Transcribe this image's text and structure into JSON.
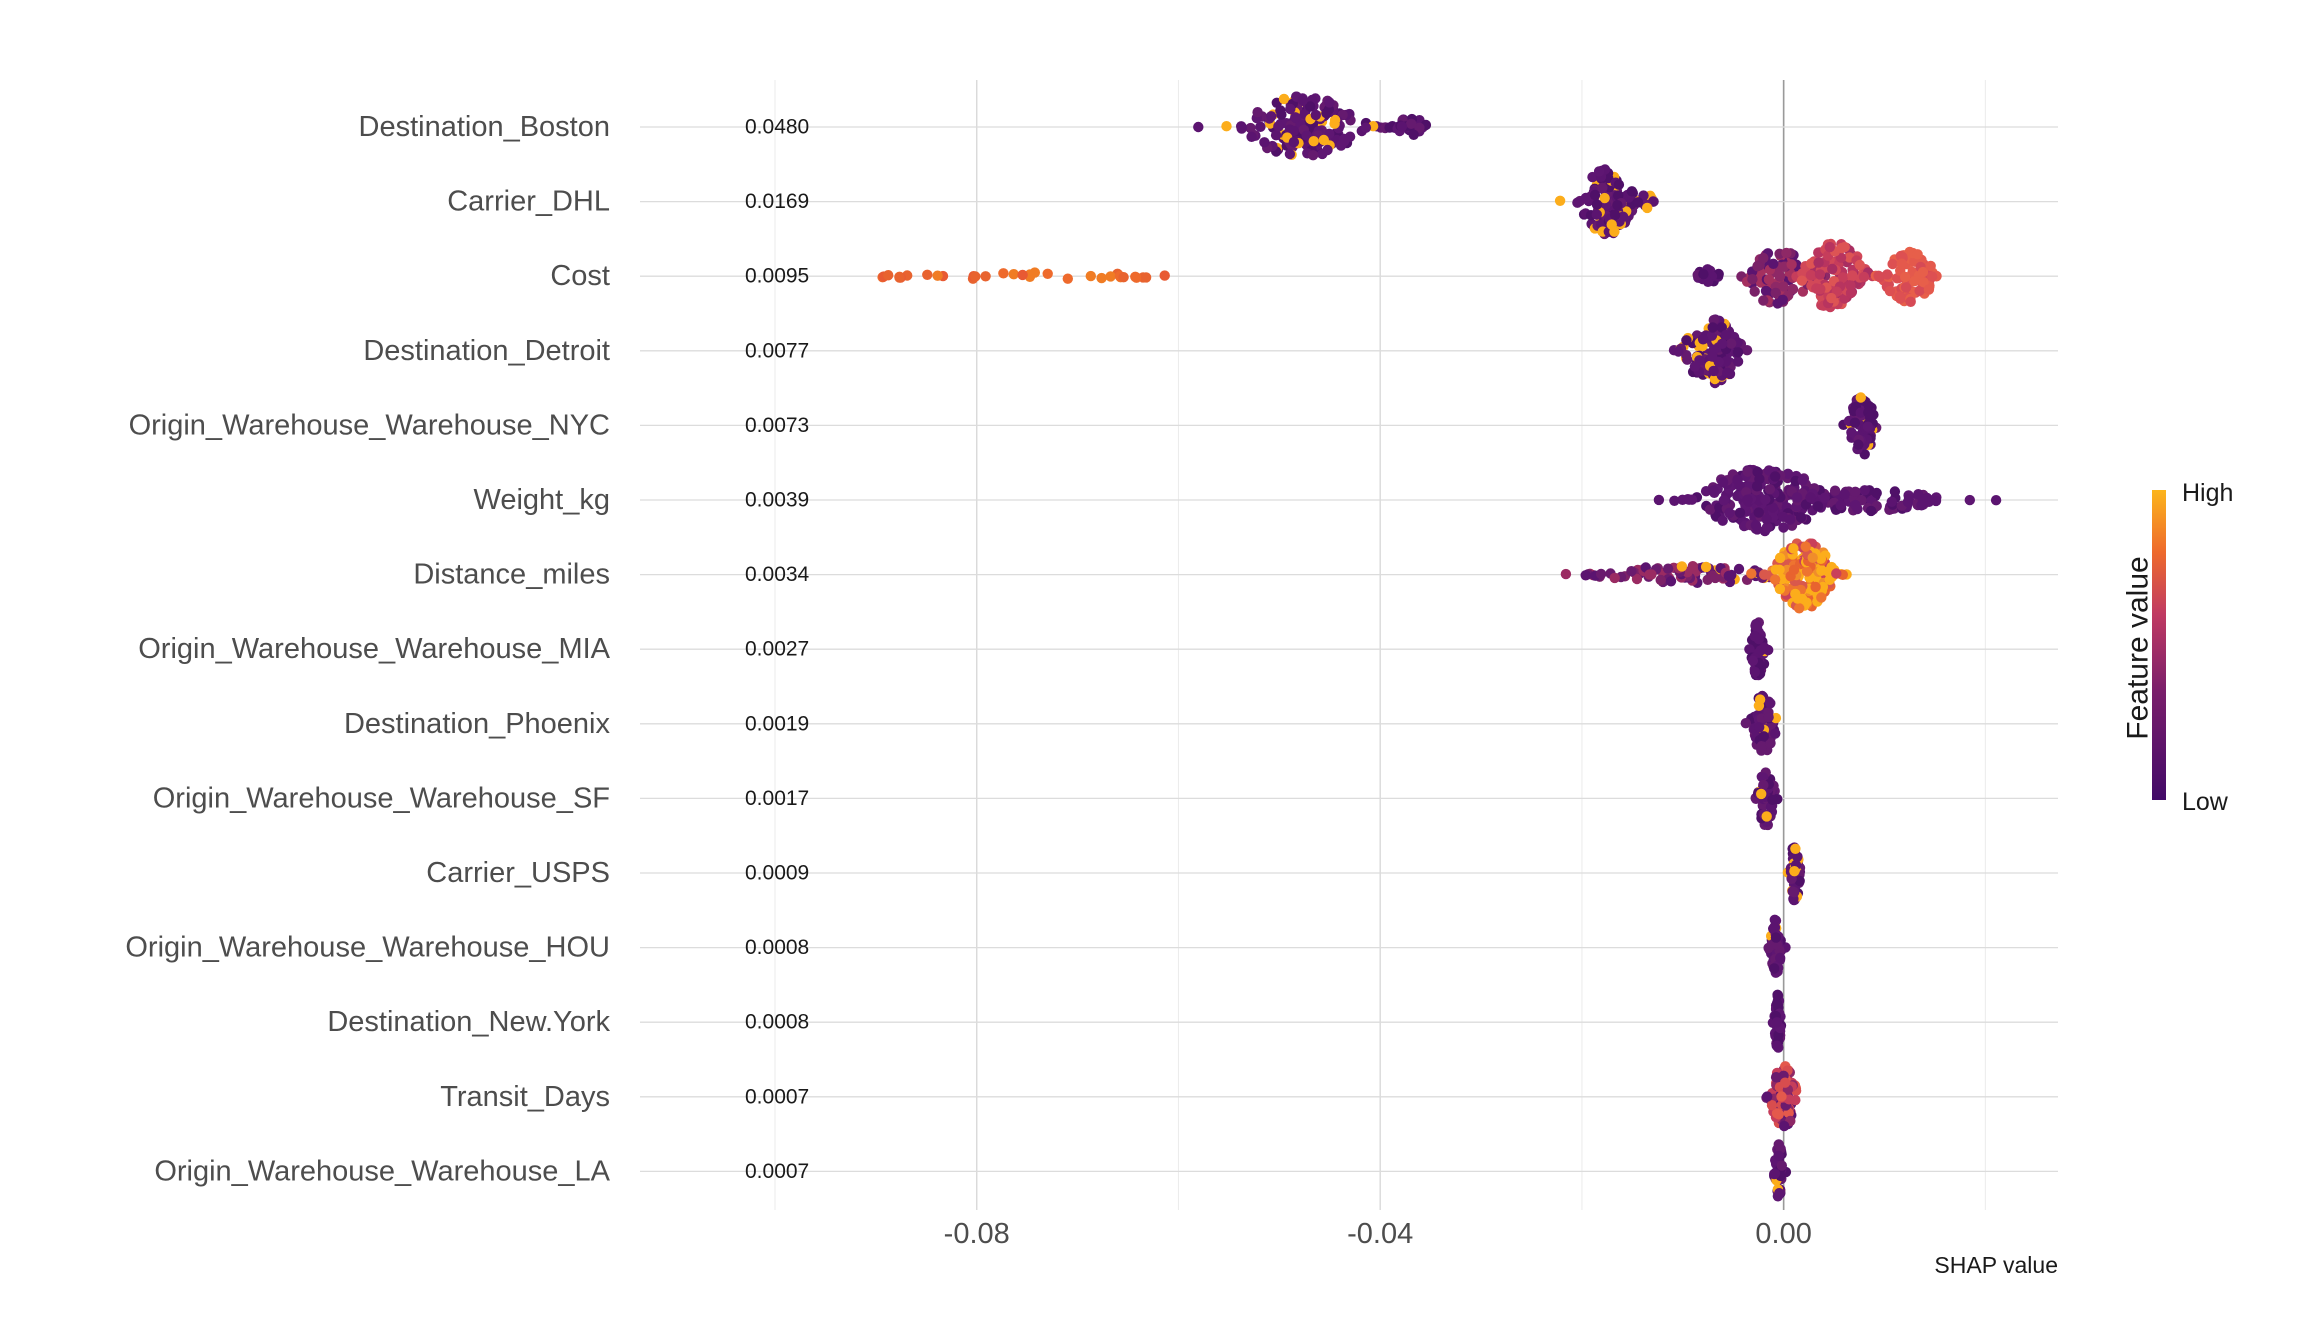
{
  "chart_data": {
    "type": "scatter",
    "subtype": "shap-beeswarm",
    "xlabel": "SHAP value",
    "xlim": [
      -0.1,
      0.0272
    ],
    "x_ticks": [
      -0.08,
      -0.04,
      0.0
    ],
    "x_tick_labels": [
      "-0.08",
      "-0.04",
      "0.00"
    ],
    "zero_line": 0.0,
    "grid": true,
    "features": [
      {
        "name": "Destination_Boston",
        "importance": "0.0480",
        "clusters": [
          {
            "center": -0.0475,
            "spread": 0.0055,
            "n": 170,
            "height": 0.42,
            "color": "low",
            "highFrac": 0.12
          },
          {
            "center": -0.037,
            "spread": 0.0016,
            "n": 30,
            "height": 0.12,
            "color": "low",
            "highFrac": 0.0
          }
        ]
      },
      {
        "name": "Carrier_DHL",
        "importance": "0.0169",
        "clusters": [
          {
            "center": -0.0175,
            "spread": 0.0025,
            "n": 150,
            "height": 0.44,
            "color": "low",
            "highFrac": 0.14
          },
          {
            "center": -0.0135,
            "spread": 0.0008,
            "n": 12,
            "height": 0.1,
            "color": "low",
            "highFrac": 0.3
          }
        ]
      },
      {
        "name": "Cost",
        "importance": "0.0095",
        "clusters": [
          {
            "center": -0.0755,
            "spread": 0.0145,
            "n": 34,
            "height": 0.05,
            "color": "orange",
            "highFrac": 0.0
          },
          {
            "center": -0.0075,
            "spread": 0.0014,
            "n": 18,
            "height": 0.1,
            "color": "low",
            "highFrac": 0.0
          },
          {
            "center": -0.0005,
            "spread": 0.003,
            "n": 90,
            "height": 0.4,
            "color": "purple-mid",
            "highFrac": 0.0
          },
          {
            "center": 0.005,
            "spread": 0.003,
            "n": 120,
            "height": 0.45,
            "color": "redmag",
            "highFrac": 0.0
          },
          {
            "center": 0.0125,
            "spread": 0.0025,
            "n": 90,
            "height": 0.35,
            "color": "coral",
            "highFrac": 0.0
          }
        ]
      },
      {
        "name": "Destination_Detroit",
        "importance": "0.0077",
        "clusters": [
          {
            "center": -0.007,
            "spread": 0.0028,
            "n": 130,
            "height": 0.44,
            "color": "low",
            "highFrac": 0.15
          }
        ]
      },
      {
        "name": "Origin_Warehouse_Warehouse_NYC",
        "importance": "0.0073",
        "clusters": [
          {
            "center": 0.0078,
            "spread": 0.0012,
            "n": 70,
            "height": 0.4,
            "color": "low",
            "highFrac": 0.15
          }
        ]
      },
      {
        "name": "Weight_kg",
        "importance": "0.0039",
        "clusters": [
          {
            "center": -0.002,
            "spread": 0.006,
            "n": 220,
            "height": 0.42,
            "color": "low",
            "highFrac": 0.0
          },
          {
            "center": 0.008,
            "spread": 0.007,
            "n": 80,
            "height": 0.15,
            "color": "low",
            "highFrac": 0.0
          },
          {
            "center": 0.021,
            "spread": 0.0003,
            "n": 1,
            "height": 0.0,
            "color": "low",
            "highFrac": 0.0
          }
        ]
      },
      {
        "name": "Distance_miles",
        "importance": "0.0034",
        "clusters": [
          {
            "center": -0.0095,
            "spread": 0.0085,
            "n": 90,
            "height": 0.12,
            "color": "low-mid",
            "highFrac": 0.05
          },
          {
            "center": 0.002,
            "spread": 0.0028,
            "n": 160,
            "height": 0.46,
            "color": "orange-mix",
            "highFrac": 0.25
          }
        ]
      },
      {
        "name": "Origin_Warehouse_Warehouse_MIA",
        "importance": "0.0027",
        "clusters": [
          {
            "center": -0.0025,
            "spread": 0.0007,
            "n": 55,
            "height": 0.38,
            "color": "low",
            "highFrac": 0.04
          }
        ]
      },
      {
        "name": "Destination_Phoenix",
        "importance": "0.0019",
        "clusters": [
          {
            "center": -0.002,
            "spread": 0.0012,
            "n": 65,
            "height": 0.4,
            "color": "low",
            "highFrac": 0.1
          }
        ]
      },
      {
        "name": "Origin_Warehouse_Warehouse_SF",
        "importance": "0.0017",
        "clusters": [
          {
            "center": -0.0017,
            "spread": 0.0008,
            "n": 55,
            "height": 0.38,
            "color": "low",
            "highFrac": 0.1
          }
        ]
      },
      {
        "name": "Carrier_USPS",
        "importance": "0.0009",
        "clusters": [
          {
            "center": 0.0011,
            "spread": 0.0005,
            "n": 45,
            "height": 0.38,
            "color": "low",
            "highFrac": 0.25
          }
        ]
      },
      {
        "name": "Origin_Warehouse_Warehouse_HOU",
        "importance": "0.0008",
        "clusters": [
          {
            "center": -0.0008,
            "spread": 0.0005,
            "n": 55,
            "height": 0.38,
            "color": "low",
            "highFrac": 0.06
          }
        ]
      },
      {
        "name": "Destination_New.York",
        "importance": "0.0008",
        "clusters": [
          {
            "center": -0.0006,
            "spread": 0.0003,
            "n": 55,
            "height": 0.38,
            "color": "low",
            "highFrac": 0.0
          }
        ]
      },
      {
        "name": "Transit_Days",
        "importance": "0.0007",
        "clusters": [
          {
            "center": 0.0,
            "spread": 0.0012,
            "n": 85,
            "height": 0.42,
            "color": "transit",
            "highFrac": 0.0
          }
        ]
      },
      {
        "name": "Origin_Warehouse_Warehouse_LA",
        "importance": "0.0007",
        "clusters": [
          {
            "center": -0.0005,
            "spread": 0.0004,
            "n": 50,
            "height": 0.38,
            "color": "low",
            "highFrac": 0.1
          }
        ]
      }
    ],
    "legend": {
      "title": "Feature value",
      "high_label": "High",
      "low_label": "Low",
      "placement": "right",
      "colors": {
        "low": "#5b1470",
        "mid": "#c03a62",
        "high": "#fcad1b"
      }
    }
  }
}
